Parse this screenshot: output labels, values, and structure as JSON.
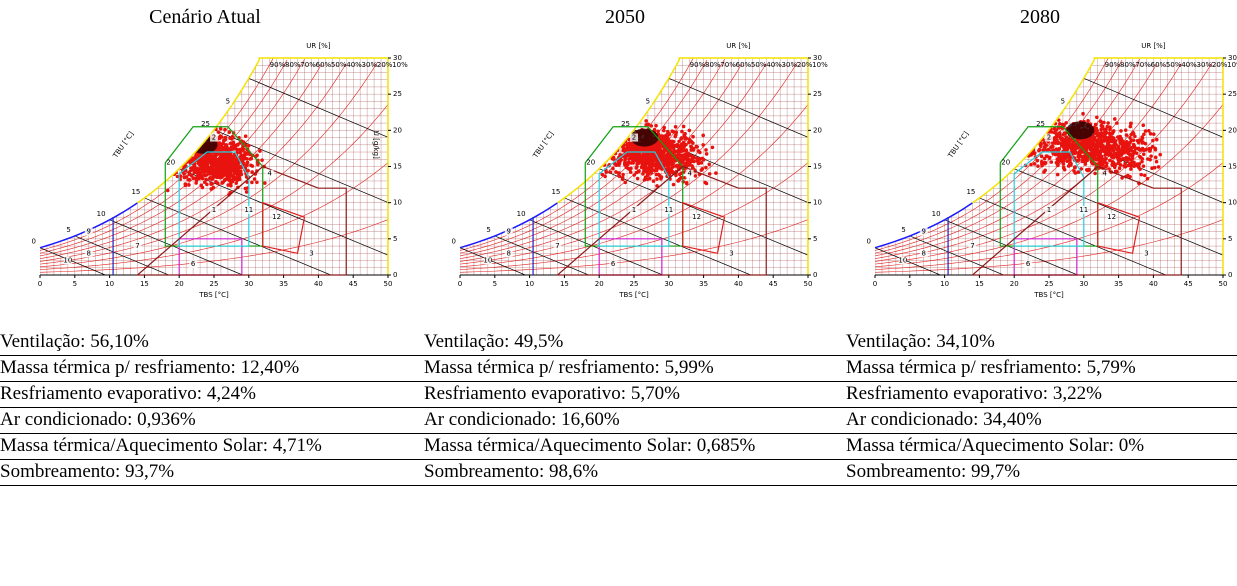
{
  "chart_common": {
    "x_label": "TBS [°C]",
    "rh_label": "UR [%]",
    "wb_label": "TBU [°C]",
    "xticks": [
      0,
      5,
      10,
      15,
      20,
      25,
      30,
      35,
      40,
      45,
      50
    ],
    "yticks": [
      0,
      5,
      10,
      15,
      20,
      25,
      30
    ],
    "wb_ticks": [
      0,
      5,
      10,
      15,
      20,
      25
    ],
    "rh_ticks": [
      "90%",
      "80%",
      "70%",
      "60%",
      "50%",
      "40%",
      "30%",
      "20%",
      "10%"
    ],
    "zones": [
      "1",
      "2",
      "3",
      "4",
      "5",
      "6",
      "7",
      "8",
      "9",
      "10",
      "11",
      "12"
    ]
  },
  "panels": [
    {
      "title": "Cenário Atual",
      "u_label": "U [g/kg]"
    },
    {
      "title": "2050"
    },
    {
      "title": "2080"
    }
  ],
  "table": {
    "rows": [
      [
        "Ventilação: 56,10%",
        "Ventilação: 49,5%",
        "Ventilação: 34,10%"
      ],
      [
        "Massa térmica p/ resfriamento: 12,40%",
        "Massa térmica p/ resfriamento: 5,99%",
        "Massa térmica p/ resfriamento: 5,79%"
      ],
      [
        "Resfriamento evaporativo: 4,24%",
        "Resfriamento evaporativo: 5,70%",
        "Resfriamento evaporativo: 3,22%"
      ],
      [
        "Ar condicionado: 0,936%",
        "Ar condicionado: 16,60%",
        "Ar condicionado: 34,40%"
      ],
      [
        "Massa térmica/Aquecimento Solar: 4,71%",
        "Massa térmica/Aquecimento Solar: 0,685%",
        "Massa térmica/Aquecimento Solar: 0%"
      ],
      [
        "Sombreamento: 93,7%",
        "Sombreamento: 98,6%",
        "Sombreamento: 99,7%"
      ]
    ]
  }
}
